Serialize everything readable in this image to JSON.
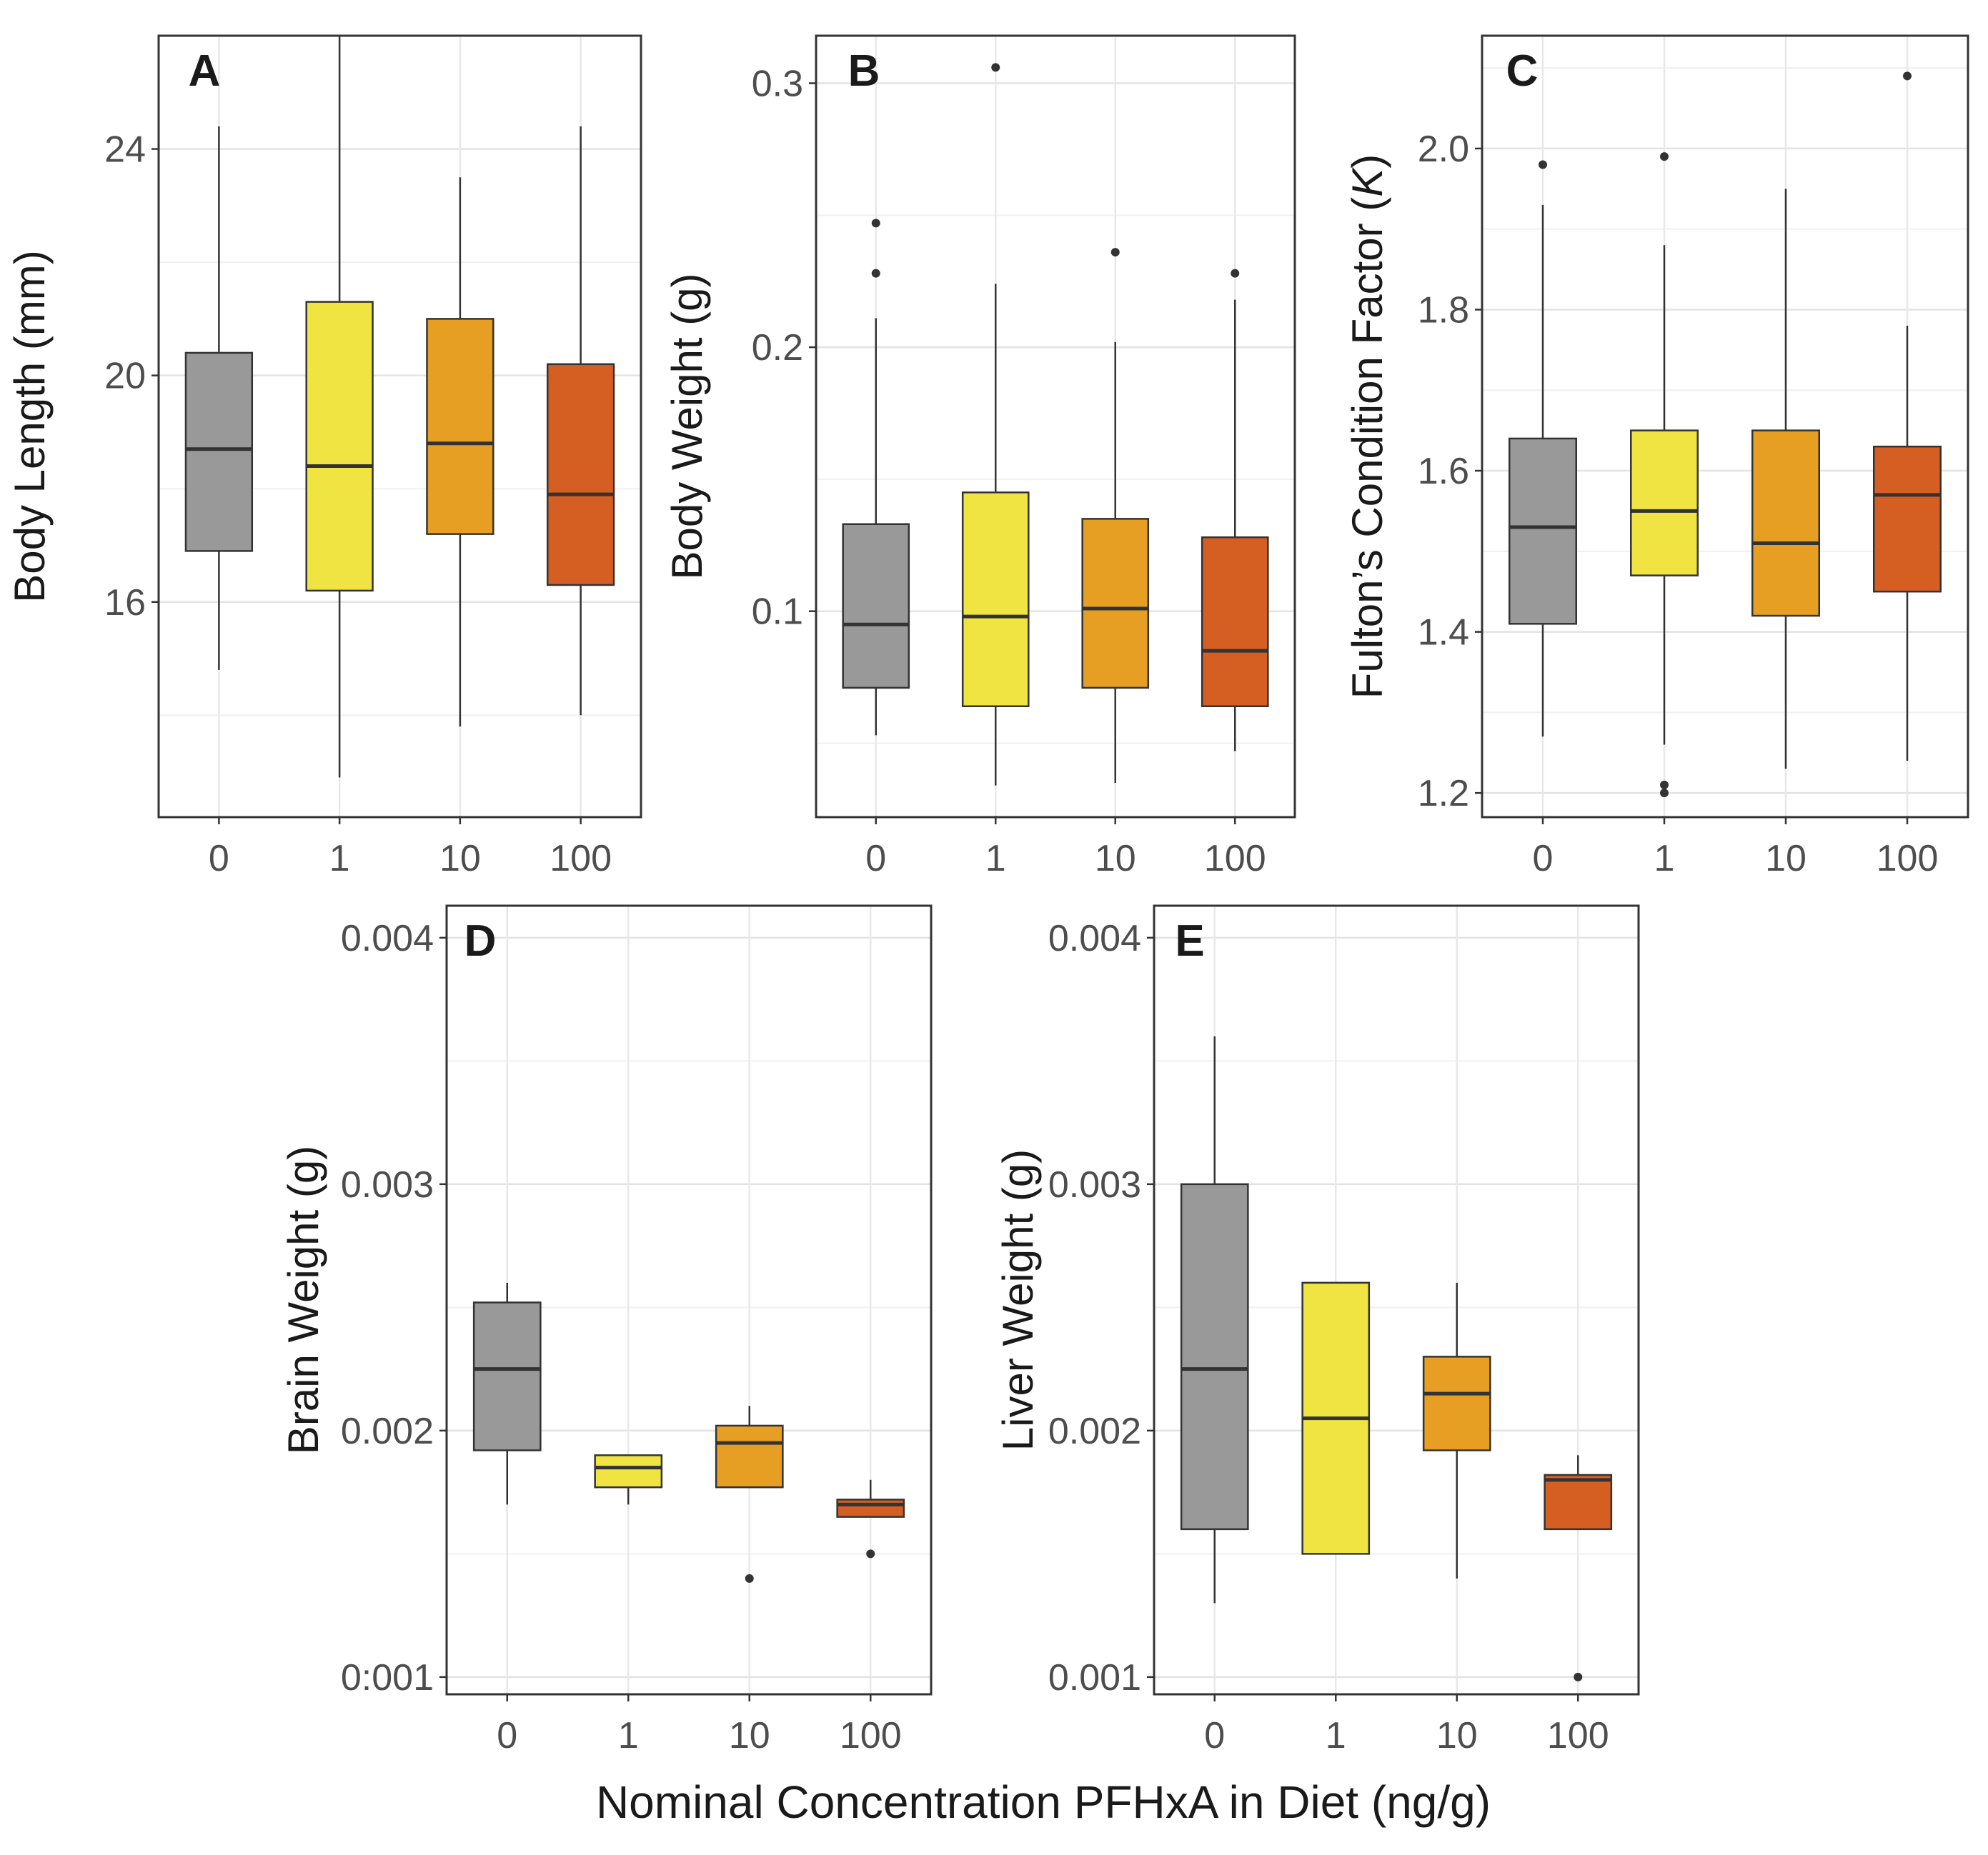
{
  "x_label": "Nominal Concentration PFHxA in Diet (ng/g)",
  "colors": {
    "0": "#999999",
    "1": "#f0e442",
    "10": "#e69f22",
    "100": "#d55e23"
  },
  "chart_data": [
    {
      "type": "boxplot",
      "panel": "A",
      "ylabel": "Body Length (mm)",
      "ylabel_parts": [
        "Body Length (mm)"
      ],
      "categories": [
        "0",
        "1",
        "10",
        "100"
      ],
      "ylim": [
        12.2,
        26.0
      ],
      "yticks": [
        16,
        20,
        24
      ],
      "ytick_labels": [
        "16",
        "20",
        "24"
      ],
      "boxes": [
        {
          "category": "0",
          "min": 14.8,
          "q1": 16.9,
          "median": 18.7,
          "q3": 20.4,
          "max": 24.4,
          "outliers": []
        },
        {
          "category": "1",
          "min": 12.9,
          "q1": 16.2,
          "median": 18.4,
          "q3": 21.3,
          "max": 26.0,
          "outliers": []
        },
        {
          "category": "10",
          "min": 13.8,
          "q1": 17.2,
          "median": 18.8,
          "q3": 21.0,
          "max": 23.5,
          "outliers": []
        },
        {
          "category": "100",
          "min": 14.0,
          "q1": 16.3,
          "median": 17.9,
          "q3": 20.2,
          "max": 24.4,
          "outliers": []
        }
      ]
    },
    {
      "type": "boxplot",
      "panel": "B",
      "ylabel": "Body Weight (g)",
      "ylabel_parts": [
        "Body Weight (g)"
      ],
      "categories": [
        "0",
        "1",
        "10",
        "100"
      ],
      "ylim": [
        0.022,
        0.318
      ],
      "yticks": [
        0.1,
        0.2,
        0.3
      ],
      "ytick_labels": [
        "0.1",
        "0.2",
        "0.3"
      ],
      "boxes": [
        {
          "category": "0",
          "min": 0.053,
          "q1": 0.071,
          "median": 0.095,
          "q3": 0.133,
          "max": 0.211,
          "outliers": [
            0.228,
            0.247
          ]
        },
        {
          "category": "1",
          "min": 0.034,
          "q1": 0.064,
          "median": 0.098,
          "q3": 0.145,
          "max": 0.224,
          "outliers": [
            0.306
          ]
        },
        {
          "category": "10",
          "min": 0.035,
          "q1": 0.071,
          "median": 0.101,
          "q3": 0.135,
          "max": 0.202,
          "outliers": [
            0.236
          ]
        },
        {
          "category": "100",
          "min": 0.047,
          "q1": 0.064,
          "median": 0.085,
          "q3": 0.128,
          "max": 0.218,
          "outliers": [
            0.228
          ]
        }
      ]
    },
    {
      "type": "boxplot",
      "panel": "C",
      "ylabel": "Fulton's Condition Factor (K)",
      "ylabel_parts": [
        "Fulton’s Condition Factor (",
        "K",
        ")"
      ],
      "categories": [
        "0",
        "1",
        "10",
        "100"
      ],
      "ylim": [
        1.17,
        2.14
      ],
      "yticks": [
        1.2,
        1.4,
        1.6,
        1.8,
        2.0
      ],
      "ytick_labels": [
        "1.2",
        "1.4",
        "1.6",
        "1.8",
        "2.0"
      ],
      "boxes": [
        {
          "category": "0",
          "min": 1.27,
          "q1": 1.41,
          "median": 1.53,
          "q3": 1.64,
          "max": 1.93,
          "outliers": [
            1.98
          ]
        },
        {
          "category": "1",
          "min": 1.26,
          "q1": 1.47,
          "median": 1.55,
          "q3": 1.65,
          "max": 1.88,
          "outliers": [
            1.99,
            1.21,
            1.2
          ]
        },
        {
          "category": "10",
          "min": 1.23,
          "q1": 1.42,
          "median": 1.51,
          "q3": 1.65,
          "max": 1.95,
          "outliers": []
        },
        {
          "category": "100",
          "min": 1.24,
          "q1": 1.45,
          "median": 1.57,
          "q3": 1.63,
          "max": 1.78,
          "outliers": [
            2.09
          ]
        }
      ]
    },
    {
      "type": "boxplot",
      "panel": "D",
      "ylabel": "Brain Weight (g)",
      "ylabel_parts": [
        "Brain Weight (g)"
      ],
      "categories": [
        "0",
        "1",
        "10",
        "100"
      ],
      "ylim": [
        0.00093,
        0.00413
      ],
      "yticks": [
        0.001,
        0.003,
        0.004
      ],
      "ytick_labels": [
        "0:001",
        "0.003",
        "0.004"
      ],
      "yticks_minor": [
        0.002
      ],
      "ytick_labels_minor": [
        "0.002"
      ],
      "boxes": [
        {
          "category": "0",
          "min": 0.0017,
          "q1": 0.00192,
          "median": 0.00225,
          "q3": 0.00252,
          "max": 0.0026,
          "outliers": []
        },
        {
          "category": "1",
          "min": 0.0017,
          "q1": 0.00177,
          "median": 0.00185,
          "q3": 0.0019,
          "max": 0.0019,
          "outliers": []
        },
        {
          "category": "10",
          "min": 0.00177,
          "q1": 0.00177,
          "median": 0.00195,
          "q3": 0.00202,
          "max": 0.0021,
          "outliers": [
            0.0014
          ]
        },
        {
          "category": "100",
          "min": 0.00165,
          "q1": 0.00165,
          "median": 0.0017,
          "q3": 0.00172,
          "max": 0.0018,
          "outliers": [
            0.0015
          ]
        }
      ]
    },
    {
      "type": "boxplot",
      "panel": "E",
      "ylabel": "Liver Weight (g)",
      "ylabel_parts": [
        "Liver Weight (g)"
      ],
      "categories": [
        "0",
        "1",
        "10",
        "100"
      ],
      "ylim": [
        0.00093,
        0.00413
      ],
      "yticks": [
        0.001,
        0.002,
        0.003,
        0.004
      ],
      "ytick_labels": [
        "0.001",
        "0.002",
        "0.003",
        "0.004"
      ],
      "boxes": [
        {
          "category": "0",
          "min": 0.0013,
          "q1": 0.0016,
          "median": 0.00225,
          "q3": 0.003,
          "max": 0.0036,
          "outliers": []
        },
        {
          "category": "1",
          "min": 0.0015,
          "q1": 0.0015,
          "median": 0.00205,
          "q3": 0.0026,
          "max": 0.0026,
          "outliers": []
        },
        {
          "category": "10",
          "min": 0.0014,
          "q1": 0.00192,
          "median": 0.00215,
          "q3": 0.0023,
          "max": 0.0026,
          "outliers": []
        },
        {
          "category": "100",
          "min": 0.0016,
          "q1": 0.0016,
          "median": 0.0018,
          "q3": 0.00182,
          "max": 0.0019,
          "outliers": [
            0.001
          ]
        }
      ]
    }
  ]
}
